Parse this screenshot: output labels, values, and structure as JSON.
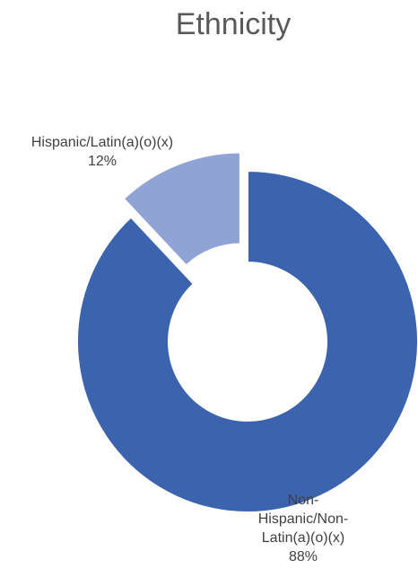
{
  "chart_data": {
    "type": "pie",
    "title": "Ethnicity",
    "categories": [
      "Hispanic/Latin(a)(o)(x)",
      "Non-Hispanic/Non-Latin(a)(o)(x)"
    ],
    "values": [
      12,
      88
    ],
    "unit": "%",
    "labels": {
      "hispanic": {
        "name": "Hispanic/Latin(a)(o)(x)",
        "pct": "12%"
      },
      "non_hispanic": {
        "name_lines": [
          "Non-",
          "Hispanic/Non-",
          "Latin(a)(o)(x)"
        ],
        "pct": "88%"
      }
    },
    "colors": [
      "#8FA3D5",
      "#3C64AE"
    ],
    "donut": true
  }
}
